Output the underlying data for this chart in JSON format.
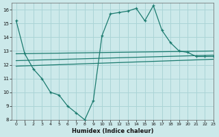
{
  "xlabel": "Humidex (Indice chaleur)",
  "bg_color": "#cce9ea",
  "grid_color": "#aad4d6",
  "line_color": "#1a7a6e",
  "xlim": [
    -0.5,
    23
  ],
  "ylim": [
    8,
    16.5
  ],
  "yticks": [
    8,
    9,
    10,
    11,
    12,
    13,
    14,
    15,
    16
  ],
  "xticks": [
    0,
    1,
    2,
    3,
    4,
    5,
    6,
    7,
    8,
    9,
    10,
    11,
    12,
    13,
    14,
    15,
    16,
    17,
    18,
    19,
    20,
    21,
    22,
    23
  ],
  "series1_x": [
    0,
    1,
    2,
    3,
    4,
    5,
    6,
    7,
    8,
    9,
    10,
    11,
    12,
    13,
    14,
    15,
    16,
    17,
    18,
    19,
    20,
    21,
    22,
    23
  ],
  "series1_y": [
    15.2,
    12.8,
    11.7,
    11.0,
    10.0,
    9.8,
    9.0,
    8.5,
    8.0,
    9.4,
    14.1,
    15.7,
    15.8,
    15.9,
    16.1,
    15.2,
    16.3,
    14.5,
    13.6,
    13.0,
    12.9,
    12.6,
    12.6,
    12.6
  ],
  "series2_x": [
    0,
    23
  ],
  "series2_y": [
    12.8,
    13.0
  ],
  "series3_x": [
    0,
    23
  ],
  "series3_y": [
    12.3,
    12.7
  ],
  "series4_x": [
    0,
    23
  ],
  "series4_y": [
    11.9,
    12.4
  ]
}
